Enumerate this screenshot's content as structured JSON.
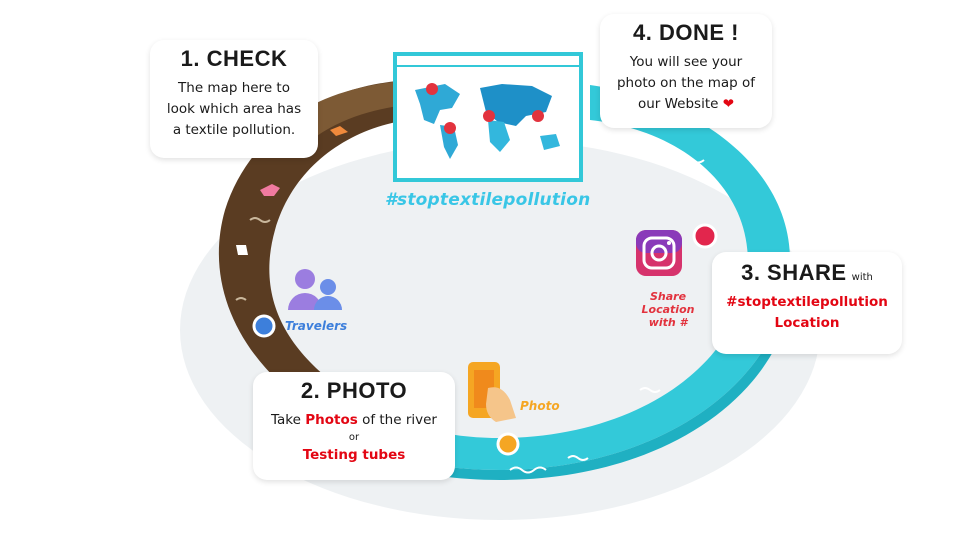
{
  "hashtag_banner": "#stoptextilepollution",
  "step1": {
    "title": "1. CHECK",
    "lines": [
      "The map here to",
      "look which area has",
      "a textile pollution."
    ]
  },
  "step2": {
    "title": "2. PHOTO",
    "line1_pre": "Take ",
    "line1_highlight": "Photos",
    "line1_post": " of the river",
    "line2": "or",
    "line3": "Testing tubes"
  },
  "step3": {
    "title": "3. SHARE",
    "title_suffix": "with",
    "hashtag": "#stoptextilepollution",
    "location": "Location"
  },
  "step4": {
    "title": "4. DONE !",
    "lines": [
      "You will see your",
      "photo on the map of",
      "our Website"
    ],
    "heart": "❤"
  },
  "icons": {
    "travelers_label": "Travelers",
    "photo_label": "Photo",
    "share_label": [
      "Share",
      "Location",
      "with #"
    ]
  },
  "colors": {
    "river_brown": "#6b4a2b",
    "river_cyan": "#32c8d8",
    "accent_red": "#e30613",
    "travelers_blue": "#3d7fdb",
    "photo_orange": "#f5a623"
  }
}
